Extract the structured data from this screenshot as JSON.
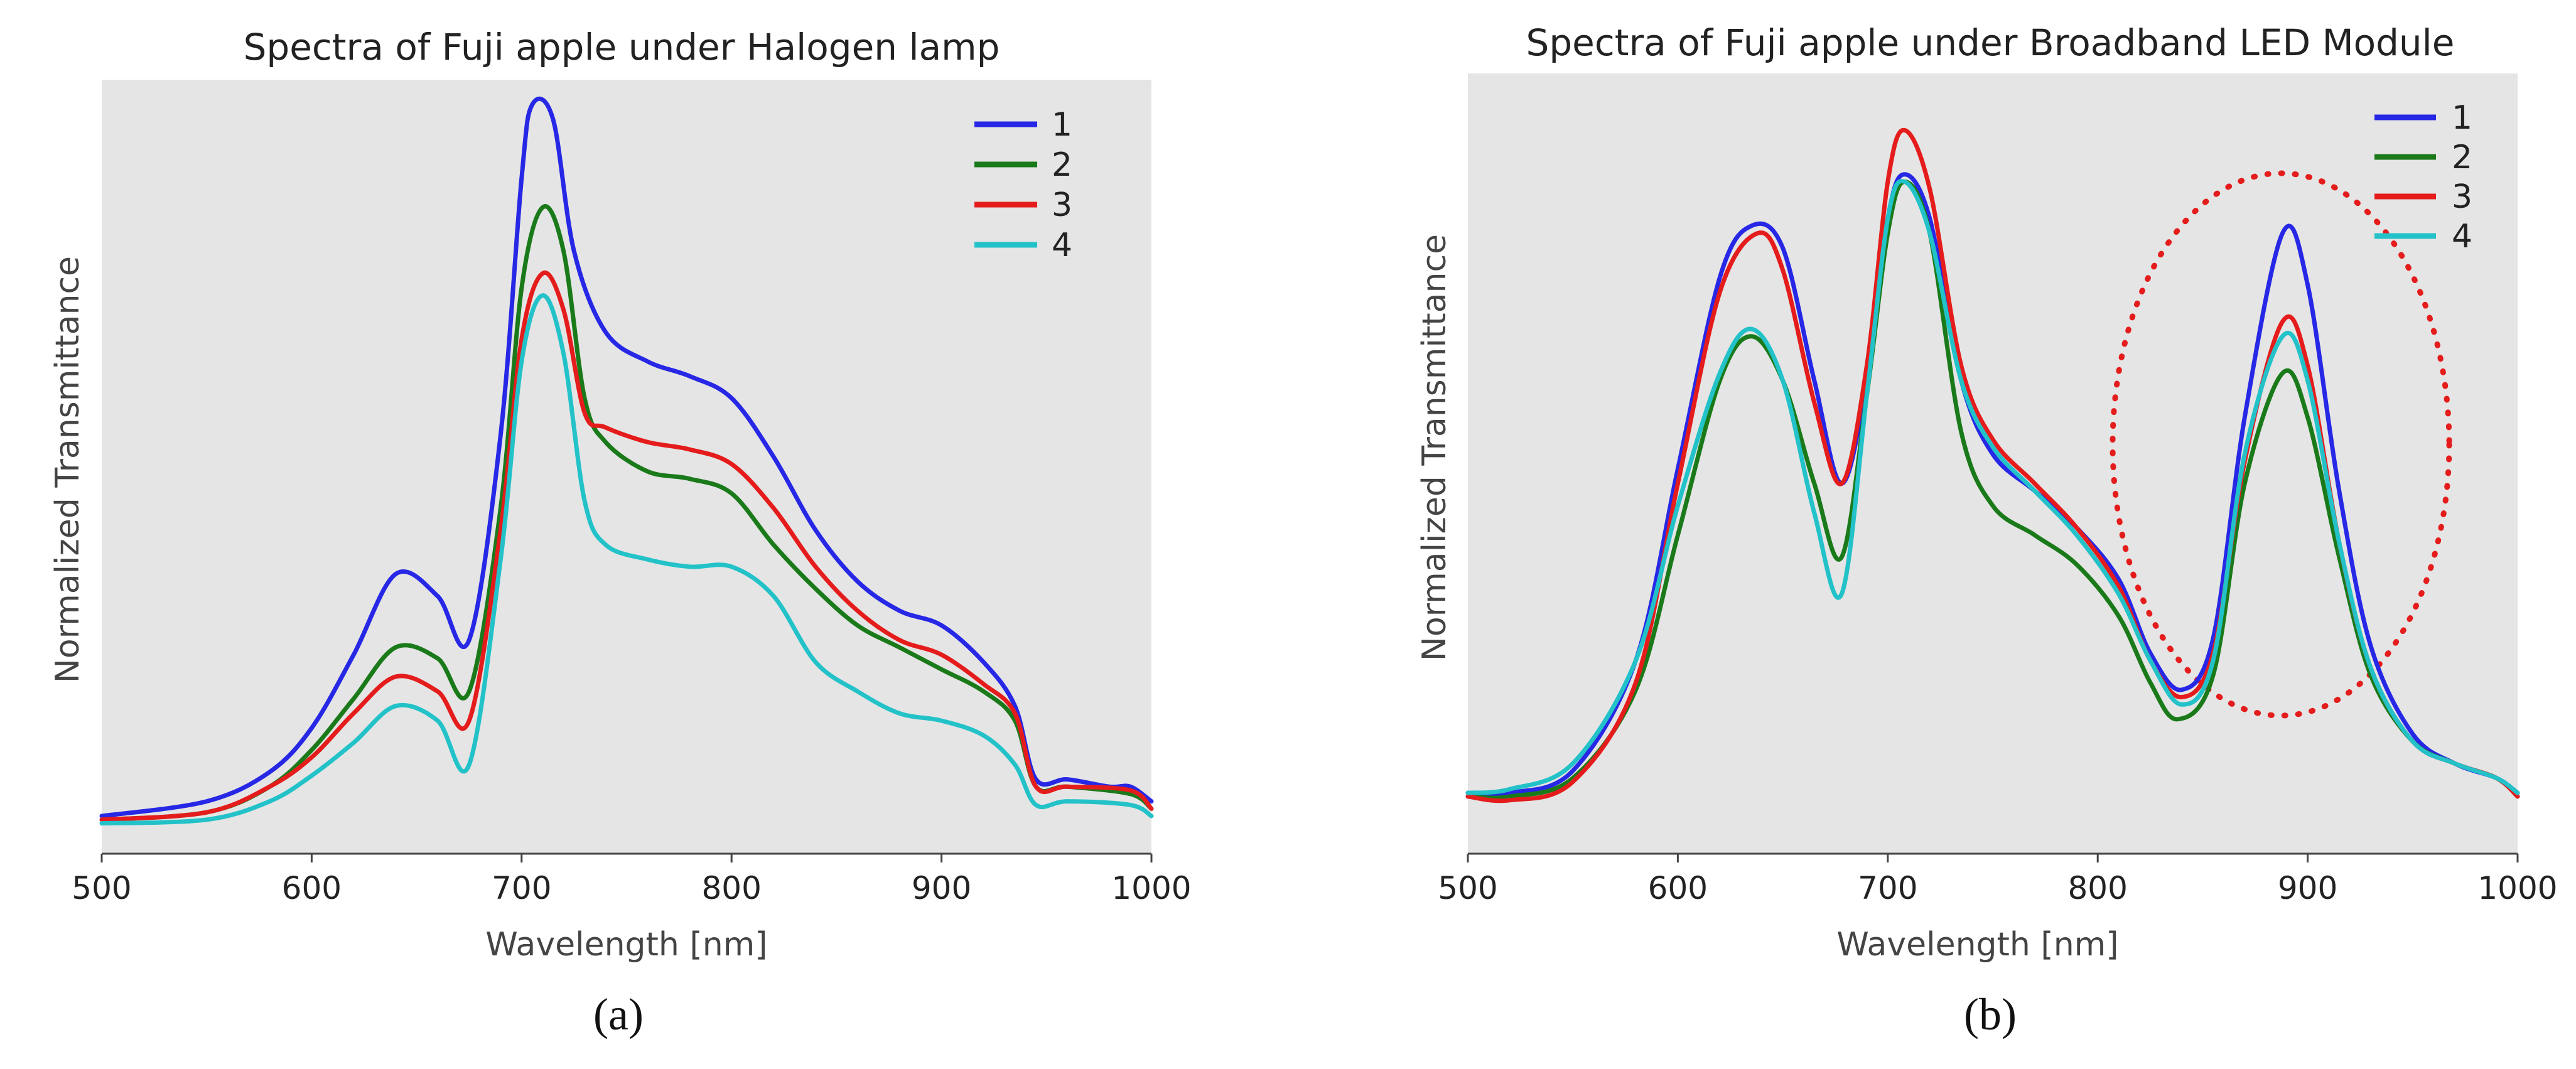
{
  "chart_data": [
    {
      "type": "line",
      "panel": "(a)",
      "title": "Spectra of Fuji apple under Halogen lamp",
      "xlabel": "Wavelength [nm]",
      "ylabel": "Normalized Transmittance",
      "xlim": [
        500,
        1000
      ],
      "ylim": [
        0,
        1
      ],
      "xticks": [
        500,
        600,
        700,
        800,
        900,
        1000
      ],
      "legend_position": "top-right",
      "series": [
        {
          "name": "1",
          "color": "#2727e6",
          "points": [
            [
              500,
              0.03
            ],
            [
              550,
              0.05
            ],
            [
              580,
              0.09
            ],
            [
              600,
              0.15
            ],
            [
              620,
              0.25
            ],
            [
              640,
              0.36
            ],
            [
              660,
              0.33
            ],
            [
              675,
              0.27
            ],
            [
              690,
              0.55
            ],
            [
              700,
              0.9
            ],
            [
              705,
              1.0
            ],
            [
              715,
              0.98
            ],
            [
              725,
              0.8
            ],
            [
              740,
              0.69
            ],
            [
              760,
              0.65
            ],
            [
              780,
              0.63
            ],
            [
              800,
              0.6
            ],
            [
              820,
              0.52
            ],
            [
              840,
              0.42
            ],
            [
              860,
              0.35
            ],
            [
              880,
              0.31
            ],
            [
              900,
              0.29
            ],
            [
              920,
              0.24
            ],
            [
              935,
              0.18
            ],
            [
              945,
              0.08
            ],
            [
              960,
              0.08
            ],
            [
              980,
              0.07
            ],
            [
              990,
              0.07
            ],
            [
              1000,
              0.05
            ]
          ]
        },
        {
          "name": "2",
          "color": "#1a7a1a",
          "points": [
            [
              500,
              0.025
            ],
            [
              550,
              0.035
            ],
            [
              580,
              0.07
            ],
            [
              600,
              0.12
            ],
            [
              620,
              0.19
            ],
            [
              640,
              0.26
            ],
            [
              660,
              0.245
            ],
            [
              675,
              0.2
            ],
            [
              690,
              0.45
            ],
            [
              700,
              0.75
            ],
            [
              710,
              0.86
            ],
            [
              720,
              0.8
            ],
            [
              730,
              0.6
            ],
            [
              740,
              0.54
            ],
            [
              760,
              0.5
            ],
            [
              780,
              0.49
            ],
            [
              800,
              0.47
            ],
            [
              820,
              0.4
            ],
            [
              840,
              0.34
            ],
            [
              860,
              0.29
            ],
            [
              880,
              0.26
            ],
            [
              900,
              0.23
            ],
            [
              920,
              0.2
            ],
            [
              935,
              0.16
            ],
            [
              945,
              0.07
            ],
            [
              960,
              0.07
            ],
            [
              990,
              0.06
            ],
            [
              1000,
              0.04
            ]
          ]
        },
        {
          "name": "3",
          "color": "#e51c1c",
          "points": [
            [
              500,
              0.025
            ],
            [
              550,
              0.035
            ],
            [
              580,
              0.07
            ],
            [
              600,
              0.11
            ],
            [
              620,
              0.17
            ],
            [
              640,
              0.22
            ],
            [
              660,
              0.2
            ],
            [
              675,
              0.16
            ],
            [
              690,
              0.42
            ],
            [
              700,
              0.68
            ],
            [
              710,
              0.77
            ],
            [
              720,
              0.72
            ],
            [
              730,
              0.58
            ],
            [
              740,
              0.56
            ],
            [
              760,
              0.54
            ],
            [
              780,
              0.53
            ],
            [
              800,
              0.51
            ],
            [
              820,
              0.45
            ],
            [
              840,
              0.37
            ],
            [
              860,
              0.31
            ],
            [
              880,
              0.27
            ],
            [
              900,
              0.25
            ],
            [
              920,
              0.21
            ],
            [
              935,
              0.17
            ],
            [
              945,
              0.07
            ],
            [
              960,
              0.07
            ],
            [
              990,
              0.065
            ],
            [
              1000,
              0.04
            ]
          ]
        },
        {
          "name": "4",
          "color": "#22c2c8",
          "points": [
            [
              500,
              0.02
            ],
            [
              550,
              0.025
            ],
            [
              580,
              0.05
            ],
            [
              600,
              0.085
            ],
            [
              620,
              0.13
            ],
            [
              640,
              0.18
            ],
            [
              660,
              0.16
            ],
            [
              675,
              0.1
            ],
            [
              690,
              0.38
            ],
            [
              700,
              0.65
            ],
            [
              710,
              0.74
            ],
            [
              720,
              0.66
            ],
            [
              730,
              0.46
            ],
            [
              740,
              0.4
            ],
            [
              760,
              0.38
            ],
            [
              780,
              0.37
            ],
            [
              800,
              0.37
            ],
            [
              820,
              0.33
            ],
            [
              840,
              0.24
            ],
            [
              860,
              0.2
            ],
            [
              880,
              0.17
            ],
            [
              900,
              0.16
            ],
            [
              920,
              0.14
            ],
            [
              935,
              0.1
            ],
            [
              945,
              0.045
            ],
            [
              960,
              0.05
            ],
            [
              990,
              0.045
            ],
            [
              1000,
              0.03
            ]
          ]
        }
      ]
    },
    {
      "type": "line",
      "panel": "(b)",
      "title": "Spectra of Fuji apple under Broadband LED Module",
      "xlabel": "Wavelength [nm]",
      "ylabel": "Normalized Transmittance",
      "xlim": [
        500,
        1000
      ],
      "ylim": [
        0,
        1
      ],
      "xticks": [
        500,
        600,
        700,
        800,
        900,
        1000
      ],
      "legend_position": "top-right",
      "annotation": {
        "type": "dotted-ellipse",
        "color": "#e51c1c",
        "x_range": [
          815,
          975
        ],
        "y_range": [
          0.13,
          0.92
        ]
      },
      "series": [
        {
          "name": "1",
          "color": "#2727e6",
          "points": [
            [
              500,
              0.04
            ],
            [
              520,
              0.04
            ],
            [
              550,
              0.07
            ],
            [
              580,
              0.22
            ],
            [
              600,
              0.48
            ],
            [
              620,
              0.74
            ],
            [
              635,
              0.81
            ],
            [
              650,
              0.78
            ],
            [
              665,
              0.6
            ],
            [
              678,
              0.46
            ],
            [
              690,
              0.6
            ],
            [
              700,
              0.82
            ],
            [
              708,
              0.88
            ],
            [
              720,
              0.82
            ],
            [
              735,
              0.6
            ],
            [
              750,
              0.5
            ],
            [
              770,
              0.45
            ],
            [
              790,
              0.4
            ],
            [
              810,
              0.33
            ],
            [
              825,
              0.23
            ],
            [
              840,
              0.18
            ],
            [
              855,
              0.25
            ],
            [
              870,
              0.55
            ],
            [
              888,
              0.8
            ],
            [
              900,
              0.73
            ],
            [
              915,
              0.45
            ],
            [
              930,
              0.24
            ],
            [
              950,
              0.12
            ],
            [
              970,
              0.08
            ],
            [
              990,
              0.06
            ],
            [
              1000,
              0.04
            ]
          ]
        },
        {
          "name": "2",
          "color": "#1a7a1a",
          "points": [
            [
              500,
              0.035
            ],
            [
              520,
              0.035
            ],
            [
              550,
              0.06
            ],
            [
              580,
              0.18
            ],
            [
              600,
              0.39
            ],
            [
              620,
              0.6
            ],
            [
              635,
              0.66
            ],
            [
              650,
              0.6
            ],
            [
              665,
              0.46
            ],
            [
              678,
              0.36
            ],
            [
              690,
              0.58
            ],
            [
              700,
              0.8
            ],
            [
              708,
              0.87
            ],
            [
              720,
              0.8
            ],
            [
              735,
              0.53
            ],
            [
              750,
              0.43
            ],
            [
              770,
              0.39
            ],
            [
              790,
              0.35
            ],
            [
              810,
              0.28
            ],
            [
              825,
              0.19
            ],
            [
              838,
              0.14
            ],
            [
              855,
              0.2
            ],
            [
              870,
              0.46
            ],
            [
              888,
              0.61
            ],
            [
              900,
              0.55
            ],
            [
              915,
              0.36
            ],
            [
              930,
              0.2
            ],
            [
              950,
              0.11
            ],
            [
              970,
              0.08
            ],
            [
              990,
              0.06
            ],
            [
              1000,
              0.035
            ]
          ]
        },
        {
          "name": "3",
          "color": "#e51c1c",
          "points": [
            [
              500,
              0.035
            ],
            [
              520,
              0.03
            ],
            [
              550,
              0.055
            ],
            [
              580,
              0.19
            ],
            [
              600,
              0.46
            ],
            [
              620,
              0.72
            ],
            [
              638,
              0.8
            ],
            [
              650,
              0.75
            ],
            [
              665,
              0.57
            ],
            [
              678,
              0.46
            ],
            [
              690,
              0.62
            ],
            [
              700,
              0.87
            ],
            [
              708,
              0.94
            ],
            [
              720,
              0.86
            ],
            [
              735,
              0.62
            ],
            [
              750,
              0.52
            ],
            [
              770,
              0.46
            ],
            [
              790,
              0.4
            ],
            [
              810,
              0.32
            ],
            [
              825,
              0.22
            ],
            [
              840,
              0.17
            ],
            [
              855,
              0.23
            ],
            [
              870,
              0.49
            ],
            [
              888,
              0.68
            ],
            [
              900,
              0.62
            ],
            [
              915,
              0.38
            ],
            [
              930,
              0.21
            ],
            [
              950,
              0.11
            ],
            [
              970,
              0.08
            ],
            [
              990,
              0.06
            ],
            [
              1000,
              0.035
            ]
          ]
        },
        {
          "name": "4",
          "color": "#22c2c8",
          "points": [
            [
              500,
              0.04
            ],
            [
              520,
              0.045
            ],
            [
              550,
              0.08
            ],
            [
              580,
              0.22
            ],
            [
              600,
              0.43
            ],
            [
              620,
              0.61
            ],
            [
              635,
              0.67
            ],
            [
              650,
              0.6
            ],
            [
              665,
              0.42
            ],
            [
              678,
              0.31
            ],
            [
              690,
              0.58
            ],
            [
              700,
              0.82
            ],
            [
              708,
              0.87
            ],
            [
              720,
              0.8
            ],
            [
              735,
              0.6
            ],
            [
              750,
              0.51
            ],
            [
              770,
              0.45
            ],
            [
              790,
              0.39
            ],
            [
              810,
              0.31
            ],
            [
              825,
              0.22
            ],
            [
              840,
              0.16
            ],
            [
              855,
              0.22
            ],
            [
              870,
              0.5
            ],
            [
              888,
              0.66
            ],
            [
              900,
              0.6
            ],
            [
              915,
              0.38
            ],
            [
              930,
              0.21
            ],
            [
              950,
              0.11
            ],
            [
              970,
              0.08
            ],
            [
              990,
              0.06
            ],
            [
              1000,
              0.04
            ]
          ]
        }
      ]
    }
  ]
}
